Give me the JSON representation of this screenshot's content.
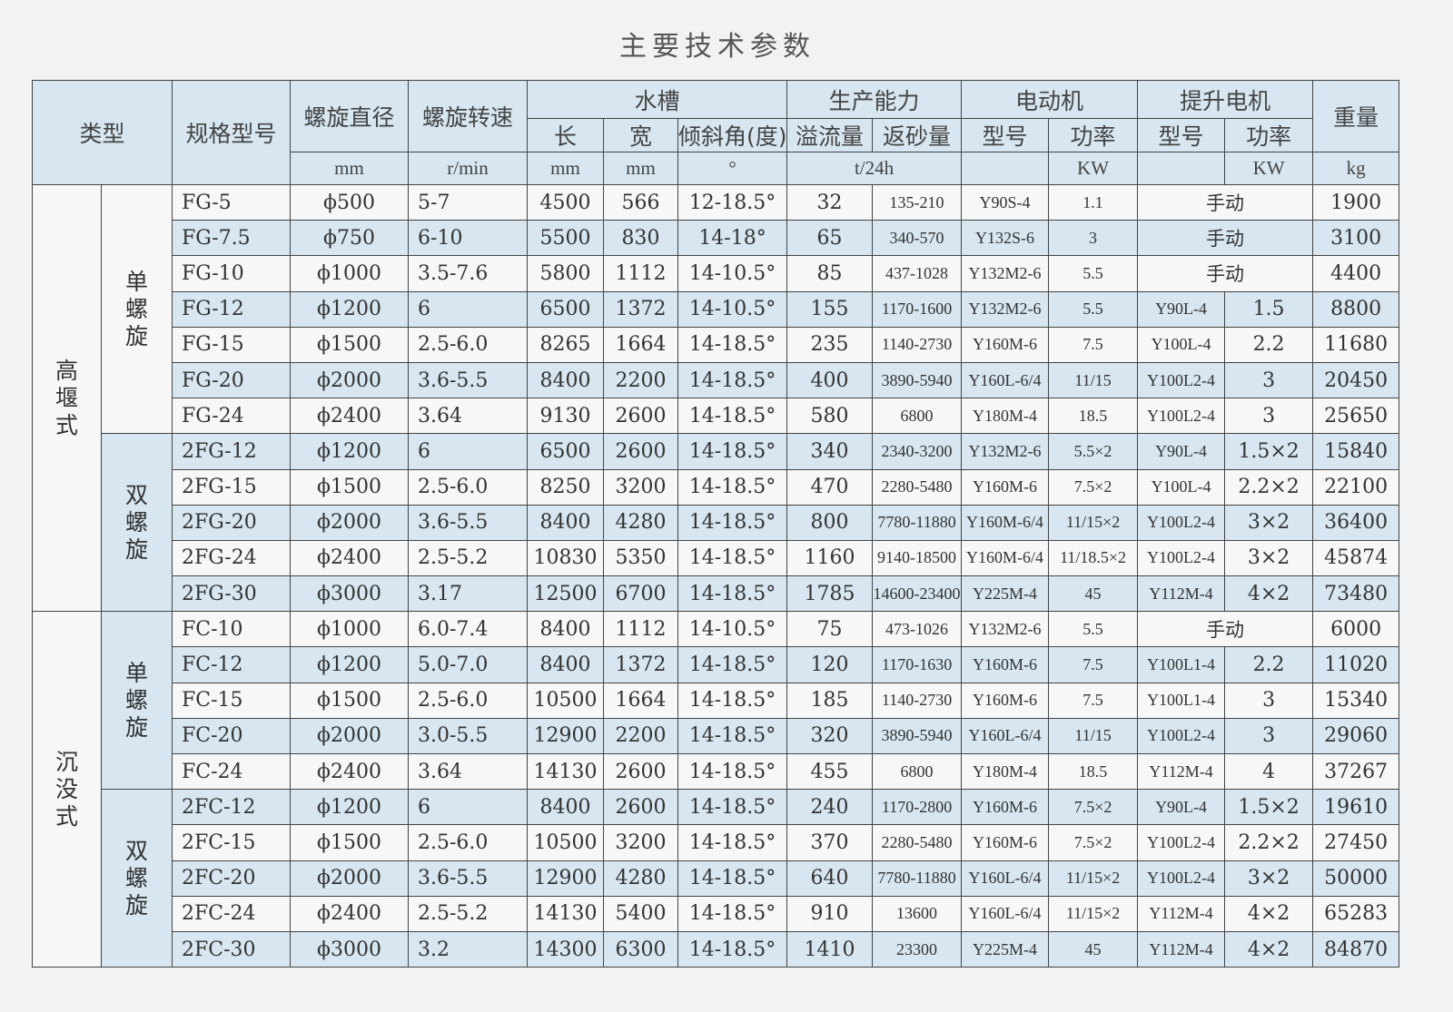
{
  "title": "主要技术参数",
  "headers": {
    "type": "类型",
    "model": "规格型号",
    "diameter": "螺旋直径",
    "speed": "螺旋转速",
    "trough": "水槽",
    "length": "长",
    "width": "宽",
    "angle": "倾斜角(度)",
    "capacity": "生产能力",
    "overflow": "溢流量",
    "sand": "返砂量",
    "motor": "电动机",
    "motor_model": "型号",
    "motor_power": "功率",
    "hoist": "提升电机",
    "hoist_model": "型号",
    "hoist_power": "功率",
    "weight": "重量",
    "units": {
      "diameter": "mm",
      "speed": "r/min",
      "length": "mm",
      "width": "mm",
      "angle": "°",
      "capacity": "t/24h",
      "motor_power": "KW",
      "hoist_power": "KW",
      "weight": "kg"
    }
  },
  "groups": [
    {
      "type": "高堰式",
      "subgroups": [
        {
          "name": "单螺旋",
          "rows": [
            [
              "FG-5",
              "ϕ500",
              "5-7",
              "4500",
              "566",
              "12-18.5°",
              "32",
              "135-210",
              "Y90S-4",
              "1.1",
              "手动",
              "",
              "1900"
            ],
            [
              "FG-7.5",
              "ϕ750",
              "6-10",
              "5500",
              "830",
              "14-18°",
              "65",
              "340-570",
              "Y132S-6",
              "3",
              "手动",
              "",
              "3100"
            ],
            [
              "FG-10",
              "ϕ1000",
              "3.5-7.6",
              "5800",
              "1112",
              "14-10.5°",
              "85",
              "437-1028",
              "Y132M2-6",
              "5.5",
              "手动",
              "",
              "4400"
            ],
            [
              "FG-12",
              "ϕ1200",
              "6",
              "6500",
              "1372",
              "14-10.5°",
              "155",
              "1170-1600",
              "Y132M2-6",
              "5.5",
              "Y90L-4",
              "1.5",
              "8800"
            ],
            [
              "FG-15",
              "ϕ1500",
              "2.5-6.0",
              "8265",
              "1664",
              "14-18.5°",
              "235",
              "1140-2730",
              "Y160M-6",
              "7.5",
              "Y100L-4",
              "2.2",
              "11680"
            ],
            [
              "FG-20",
              "ϕ2000",
              "3.6-5.5",
              "8400",
              "2200",
              "14-18.5°",
              "400",
              "3890-5940",
              "Y160L-6/4",
              "11/15",
              "Y100L2-4",
              "3",
              "20450"
            ],
            [
              "FG-24",
              "ϕ2400",
              "3.64",
              "9130",
              "2600",
              "14-18.5°",
              "580",
              "6800",
              "Y180M-4",
              "18.5",
              "Y100L2-4",
              "3",
              "25650"
            ]
          ]
        },
        {
          "name": "双螺旋",
          "rows": [
            [
              "2FG-12",
              "ϕ1200",
              "6",
              "6500",
              "2600",
              "14-18.5°",
              "340",
              "2340-3200",
              "Y132M2-6",
              "5.5×2",
              "Y90L-4",
              "1.5×2",
              "15840"
            ],
            [
              "2FG-15",
              "ϕ1500",
              "2.5-6.0",
              "8250",
              "3200",
              "14-18.5°",
              "470",
              "2280-5480",
              "Y160M-6",
              "7.5×2",
              "Y100L-4",
              "2.2×2",
              "22100"
            ],
            [
              "2FG-20",
              "ϕ2000",
              "3.6-5.5",
              "8400",
              "4280",
              "14-18.5°",
              "800",
              "7780-11880",
              "Y160M-6/4",
              "11/15×2",
              "Y100L2-4",
              "3×2",
              "36400"
            ],
            [
              "2FG-24",
              "ϕ2400",
              "2.5-5.2",
              "10830",
              "5350",
              "14-18.5°",
              "1160",
              "9140-18500",
              "Y160M-6/4",
              "11/18.5×2",
              "Y100L2-4",
              "3×2",
              "45874"
            ],
            [
              "2FG-30",
              "ϕ3000",
              "3.17",
              "12500",
              "6700",
              "14-18.5°",
              "1785",
              "14600-23400",
              "Y225M-4",
              "45",
              "Y112M-4",
              "4×2",
              "73480"
            ]
          ]
        }
      ]
    },
    {
      "type": "沉没式",
      "subgroups": [
        {
          "name": "单螺旋",
          "rows": [
            [
              "FC-10",
              "ϕ1000",
              "6.0-7.4",
              "8400",
              "1112",
              "14-10.5°",
              "75",
              "473-1026",
              "Y132M2-6",
              "5.5",
              "手动",
              "",
              "6000"
            ],
            [
              "FC-12",
              "ϕ1200",
              "5.0-7.0",
              "8400",
              "1372",
              "14-18.5°",
              "120",
              "1170-1630",
              "Y160M-6",
              "7.5",
              "Y100L1-4",
              "2.2",
              "11020"
            ],
            [
              "FC-15",
              "ϕ1500",
              "2.5-6.0",
              "10500",
              "1664",
              "14-18.5°",
              "185",
              "1140-2730",
              "Y160M-6",
              "7.5",
              "Y100L1-4",
              "3",
              "15340"
            ],
            [
              "FC-20",
              "ϕ2000",
              "3.0-5.5",
              "12900",
              "2200",
              "14-18.5°",
              "320",
              "3890-5940",
              "Y160L-6/4",
              "11/15",
              "Y100L2-4",
              "3",
              "29060"
            ],
            [
              "FC-24",
              "ϕ2400",
              "3.64",
              "14130",
              "2600",
              "14-18.5°",
              "455",
              "6800",
              "Y180M-4",
              "18.5",
              "Y112M-4",
              "4",
              "37267"
            ]
          ]
        },
        {
          "name": "双螺旋",
          "rows": [
            [
              "2FC-12",
              "ϕ1200",
              "6",
              "8400",
              "2600",
              "14-18.5°",
              "240",
              "1170-2800",
              "Y160M-6",
              "7.5×2",
              "Y90L-4",
              "1.5×2",
              "19610"
            ],
            [
              "2FC-15",
              "ϕ1500",
              "2.5-6.0",
              "10500",
              "3200",
              "14-18.5°",
              "370",
              "2280-5480",
              "Y160M-6",
              "7.5×2",
              "Y100L2-4",
              "2.2×2",
              "27450"
            ],
            [
              "2FC-20",
              "ϕ2000",
              "3.6-5.5",
              "12900",
              "4280",
              "14-18.5°",
              "640",
              "7780-11880",
              "Y160L-6/4",
              "11/15×2",
              "Y100L2-4",
              "3×2",
              "50000"
            ],
            [
              "2FC-24",
              "ϕ2400",
              "2.5-5.2",
              "14130",
              "5400",
              "14-18.5°",
              "910",
              "13600",
              "Y160L-6/4",
              "11/15×2",
              "Y112M-4",
              "4×2",
              "65283"
            ],
            [
              "2FC-30",
              "ϕ3000",
              "3.2",
              "14300",
              "6300",
              "14-18.5°",
              "1410",
              "23300",
              "Y225M-4",
              "45",
              "Y112M-4",
              "4×2",
              "84870"
            ]
          ]
        }
      ]
    }
  ]
}
